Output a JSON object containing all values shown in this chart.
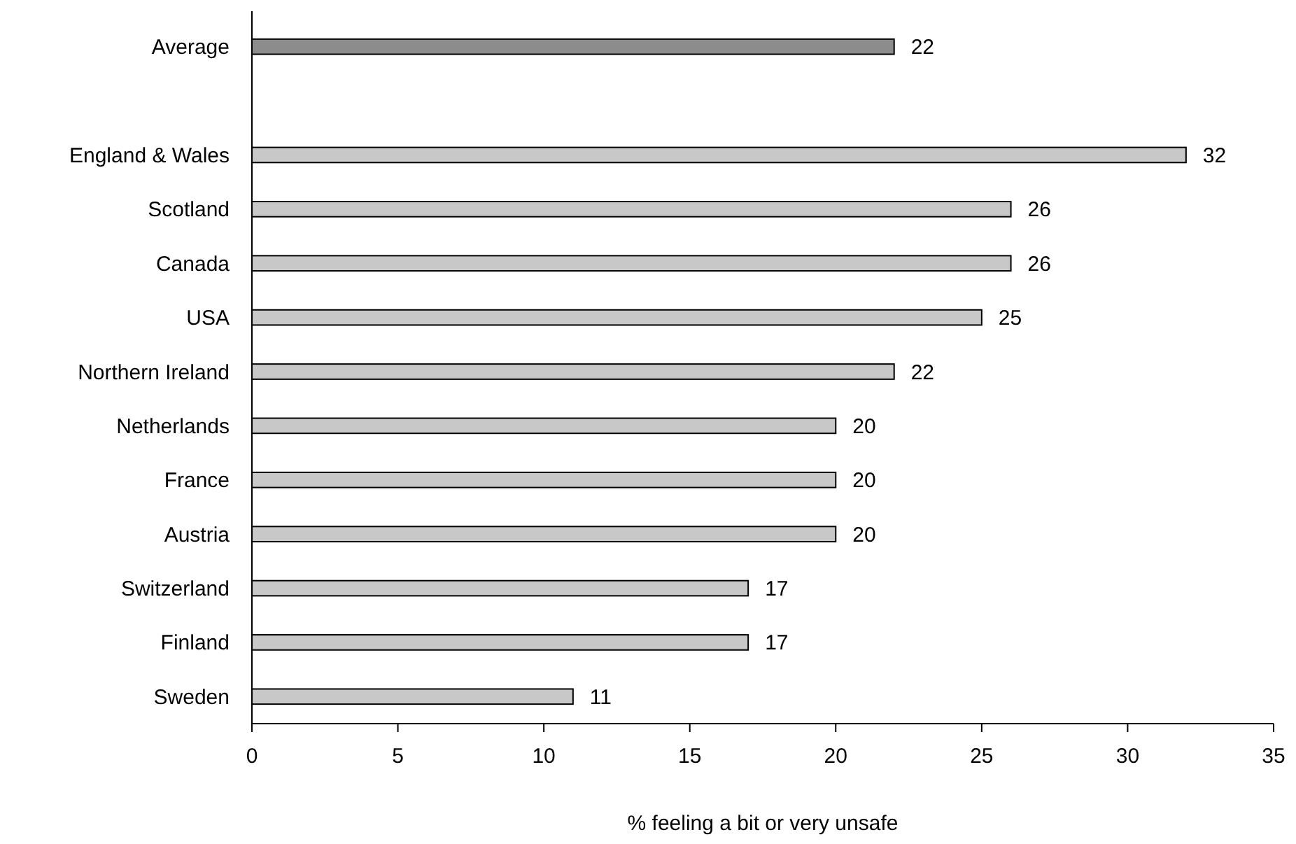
{
  "chart_data": {
    "type": "bar",
    "orientation": "horizontal",
    "xlabel": "% feeling a bit or very unsafe",
    "categories": [
      "Average",
      null,
      "England & Wales",
      "Scotland",
      "Canada",
      "USA",
      "Northern Ireland",
      "Netherlands",
      "France",
      "Austria",
      "Switzerland",
      "Finland",
      "Sweden"
    ],
    "values": [
      22,
      null,
      32,
      26,
      26,
      25,
      22,
      20,
      20,
      20,
      17,
      17,
      11
    ],
    "colors": [
      "#8c8c8c",
      null,
      "#c8c8c8",
      "#c8c8c8",
      "#c8c8c8",
      "#c8c8c8",
      "#c8c8c8",
      "#c8c8c8",
      "#c8c8c8",
      "#c8c8c8",
      "#c8c8c8",
      "#c8c8c8",
      "#c8c8c8"
    ],
    "xlim": [
      0,
      35
    ],
    "xticks": [
      0,
      5,
      10,
      15,
      20,
      25,
      30,
      35
    ],
    "data_labels": true
  }
}
